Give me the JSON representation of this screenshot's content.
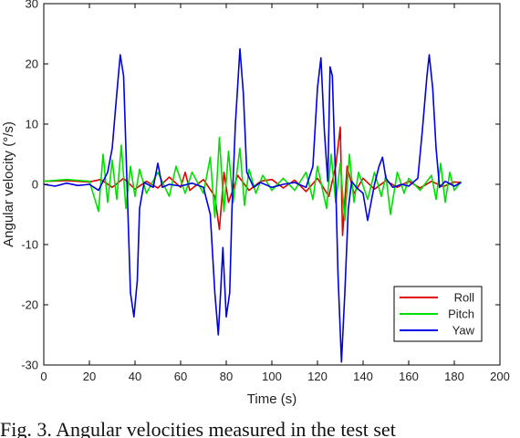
{
  "chart_data": {
    "type": "line",
    "title": "",
    "xlabel": "Time (s)",
    "ylabel": "Angular velocity (°/s)",
    "xlim": [
      0,
      200
    ],
    "ylim": [
      -30,
      30
    ],
    "x_ticks": [
      0,
      20,
      40,
      60,
      80,
      100,
      120,
      140,
      160,
      180,
      200
    ],
    "y_ticks": [
      -30,
      -20,
      -10,
      0,
      10,
      20,
      30
    ],
    "grid": false,
    "legend_position": "bottom-right",
    "series": [
      {
        "name": "Roll",
        "color": "#e00000",
        "points": [
          [
            0,
            0.5
          ],
          [
            10,
            0.6
          ],
          [
            20,
            0.4
          ],
          [
            25,
            0.8
          ],
          [
            30,
            -0.5
          ],
          [
            35,
            1.0
          ],
          [
            40,
            -0.8
          ],
          [
            45,
            0.5
          ],
          [
            50,
            -0.6
          ],
          [
            55,
            1.2
          ],
          [
            60,
            -0.5
          ],
          [
            62,
            2.0
          ],
          [
            64,
            -1.0
          ],
          [
            70,
            0.8
          ],
          [
            75,
            -2.0
          ],
          [
            77,
            -7.5
          ],
          [
            79,
            2.0
          ],
          [
            81,
            -3.0
          ],
          [
            85,
            1.5
          ],
          [
            90,
            -1.0
          ],
          [
            95,
            0.5
          ],
          [
            100,
            0.8
          ],
          [
            105,
            -0.6
          ],
          [
            110,
            0.7
          ],
          [
            115,
            -1.2
          ],
          [
            120,
            1.0
          ],
          [
            125,
            -2.0
          ],
          [
            128,
            3.0
          ],
          [
            130,
            9.5
          ],
          [
            131,
            -8.5
          ],
          [
            133,
            3.0
          ],
          [
            136,
            -1.5
          ],
          [
            140,
            1.0
          ],
          [
            145,
            -0.8
          ],
          [
            150,
            0.6
          ],
          [
            155,
            -0.5
          ],
          [
            160,
            0.5
          ],
          [
            165,
            -0.6
          ],
          [
            170,
            0.5
          ],
          [
            175,
            -0.4
          ],
          [
            180,
            0.4
          ],
          [
            183,
            0.3
          ]
        ]
      },
      {
        "name": "Pitch",
        "color": "#00e000",
        "points": [
          [
            0,
            0.5
          ],
          [
            10,
            0.8
          ],
          [
            20,
            0.5
          ],
          [
            24,
            -4.5
          ],
          [
            26,
            5.0
          ],
          [
            28,
            -3.0
          ],
          [
            30,
            4.0
          ],
          [
            32,
            -2.5
          ],
          [
            34,
            6.5
          ],
          [
            36,
            -4.0
          ],
          [
            38,
            3.0
          ],
          [
            40,
            -2.0
          ],
          [
            42,
            2.5
          ],
          [
            45,
            -1.5
          ],
          [
            50,
            2.0
          ],
          [
            55,
            -2.0
          ],
          [
            58,
            3.0
          ],
          [
            62,
            -1.5
          ],
          [
            65,
            2.0
          ],
          [
            70,
            -1.5
          ],
          [
            73,
            4.5
          ],
          [
            75,
            -5.5
          ],
          [
            77,
            7.8
          ],
          [
            79,
            -4.5
          ],
          [
            81,
            5.5
          ],
          [
            83,
            -3.0
          ],
          [
            86,
            6.0
          ],
          [
            88,
            -3.5
          ],
          [
            90,
            2.5
          ],
          [
            93,
            -1.5
          ],
          [
            96,
            1.5
          ],
          [
            100,
            -1.0
          ],
          [
            105,
            1.0
          ],
          [
            110,
            -1.0
          ],
          [
            115,
            2.0
          ],
          [
            118,
            -2.5
          ],
          [
            120,
            3.0
          ],
          [
            124,
            -4.0
          ],
          [
            126,
            5.0
          ],
          [
            128,
            -3.0
          ],
          [
            130,
            3.5
          ],
          [
            132,
            -6.0
          ],
          [
            134,
            5.0
          ],
          [
            136,
            -3.0
          ],
          [
            138,
            2.0
          ],
          [
            142,
            -2.5
          ],
          [
            145,
            2.0
          ],
          [
            148,
            -2.0
          ],
          [
            150,
            1.5
          ],
          [
            152,
            -5.0
          ],
          [
            155,
            2.0
          ],
          [
            158,
            -1.5
          ],
          [
            160,
            1.0
          ],
          [
            165,
            -1.0
          ],
          [
            170,
            1.5
          ],
          [
            172,
            -2.5
          ],
          [
            174,
            3.5
          ],
          [
            176,
            -3.0
          ],
          [
            178,
            2.0
          ],
          [
            180,
            -1.0
          ],
          [
            183,
            0.5
          ]
        ]
      },
      {
        "name": "Yaw",
        "color": "#0000e6",
        "points": [
          [
            0,
            0.0
          ],
          [
            5,
            -0.3
          ],
          [
            10,
            0.2
          ],
          [
            15,
            -0.2
          ],
          [
            20,
            0.0
          ],
          [
            24,
            -1.0
          ],
          [
            26,
            0.5
          ],
          [
            28,
            2.0
          ],
          [
            30,
            6.0
          ],
          [
            32,
            15.0
          ],
          [
            33.5,
            21.5
          ],
          [
            35,
            18.0
          ],
          [
            36,
            6.0
          ],
          [
            37,
            -6.0
          ],
          [
            38,
            -18.0
          ],
          [
            39.5,
            -22.0
          ],
          [
            41,
            -16.0
          ],
          [
            42,
            -4.0
          ],
          [
            44,
            0.3
          ],
          [
            48,
            -0.5
          ],
          [
            50,
            3.5
          ],
          [
            52,
            -0.5
          ],
          [
            55,
            0.0
          ],
          [
            60,
            -0.3
          ],
          [
            65,
            0.2
          ],
          [
            70,
            -0.5
          ],
          [
            73,
            -5.0
          ],
          [
            75,
            -18.0
          ],
          [
            76.5,
            -25.0
          ],
          [
            77.5,
            -18.0
          ],
          [
            78.5,
            -10.5
          ],
          [
            80,
            -22.0
          ],
          [
            81.5,
            -18.0
          ],
          [
            82.5,
            -4.0
          ],
          [
            84,
            10.0
          ],
          [
            86,
            22.5
          ],
          [
            87.5,
            15.0
          ],
          [
            89,
            2.0
          ],
          [
            92,
            -0.5
          ],
          [
            95,
            0.3
          ],
          [
            100,
            -0.5
          ],
          [
            105,
            0.0
          ],
          [
            110,
            0.3
          ],
          [
            115,
            -0.5
          ],
          [
            118,
            3.0
          ],
          [
            120,
            16.0
          ],
          [
            121.5,
            21.0
          ],
          [
            123,
            9.0
          ],
          [
            124.5,
            0.5
          ],
          [
            125.5,
            19.5
          ],
          [
            126.5,
            18.0
          ],
          [
            128,
            0.0
          ],
          [
            129,
            -15.0
          ],
          [
            130.5,
            -29.5
          ],
          [
            132,
            -18.0
          ],
          [
            133.5,
            -4.0
          ],
          [
            135,
            0.5
          ],
          [
            137,
            -0.5
          ],
          [
            140,
            -1.5
          ],
          [
            142,
            -6.0
          ],
          [
            143,
            -4.0
          ],
          [
            145,
            0.0
          ],
          [
            147,
            3.0
          ],
          [
            148.5,
            4.5
          ],
          [
            150,
            1.0
          ],
          [
            153,
            -0.5
          ],
          [
            157,
            0.0
          ],
          [
            160,
            -0.3
          ],
          [
            164,
            1.0
          ],
          [
            166,
            9.0
          ],
          [
            168,
            18.0
          ],
          [
            169,
            21.5
          ],
          [
            170.5,
            16.0
          ],
          [
            172,
            6.0
          ],
          [
            173.5,
            -0.5
          ],
          [
            176,
            0.5
          ],
          [
            180,
            -0.3
          ],
          [
            183,
            0.3
          ]
        ]
      }
    ]
  },
  "caption": {
    "text": "Fig. 3.  Angular velocities measured in the test set"
  }
}
